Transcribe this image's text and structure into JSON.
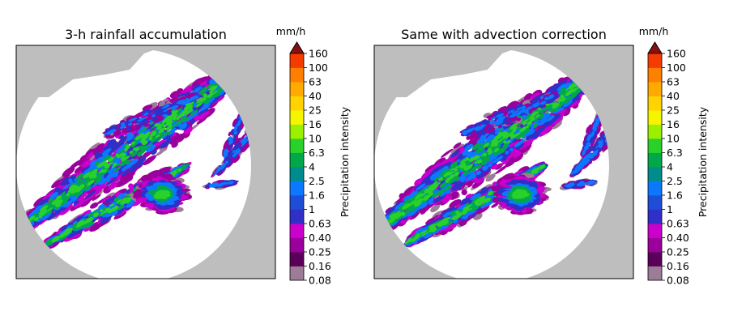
{
  "chart_data": [
    {
      "type": "heatmap",
      "title": "3-h rainfall accumulation",
      "colorbar": {
        "label": "Precipitation intensity",
        "unit": "mm/h",
        "levels": [
          "0.08",
          "0.16",
          "0.25",
          "0.40",
          "0.63",
          "1",
          "1.6",
          "2.5",
          "4",
          "6.3",
          "10",
          "16",
          "25",
          "40",
          "63",
          "100",
          "160"
        ],
        "extend": "max"
      },
      "no_data_color": "#bebebe",
      "dry_color": "#ffffff"
    },
    {
      "type": "heatmap",
      "title": "Same with advection correction",
      "colorbar": {
        "label": "Precipitation intensity",
        "unit": "mm/h",
        "levels": [
          "0.08",
          "0.16",
          "0.25",
          "0.40",
          "0.63",
          "1",
          "1.6",
          "2.5",
          "4",
          "6.3",
          "10",
          "16",
          "25",
          "40",
          "63",
          "100",
          "160"
        ],
        "extend": "max"
      },
      "no_data_color": "#bebebe",
      "dry_color": "#ffffff"
    }
  ],
  "colormap": [
    "#9c7c96",
    "#5a0058",
    "#9c009c",
    "#cc00cc",
    "#3030c8",
    "#1f4ed6",
    "#0b78ff",
    "#008c8c",
    "#00a84a",
    "#2ad12a",
    "#9bf000",
    "#f5f500",
    "#ffd200",
    "#ffaa00",
    "#ff7f00",
    "#f53c00",
    "#d11a00"
  ],
  "extend_color": "#8a1010"
}
